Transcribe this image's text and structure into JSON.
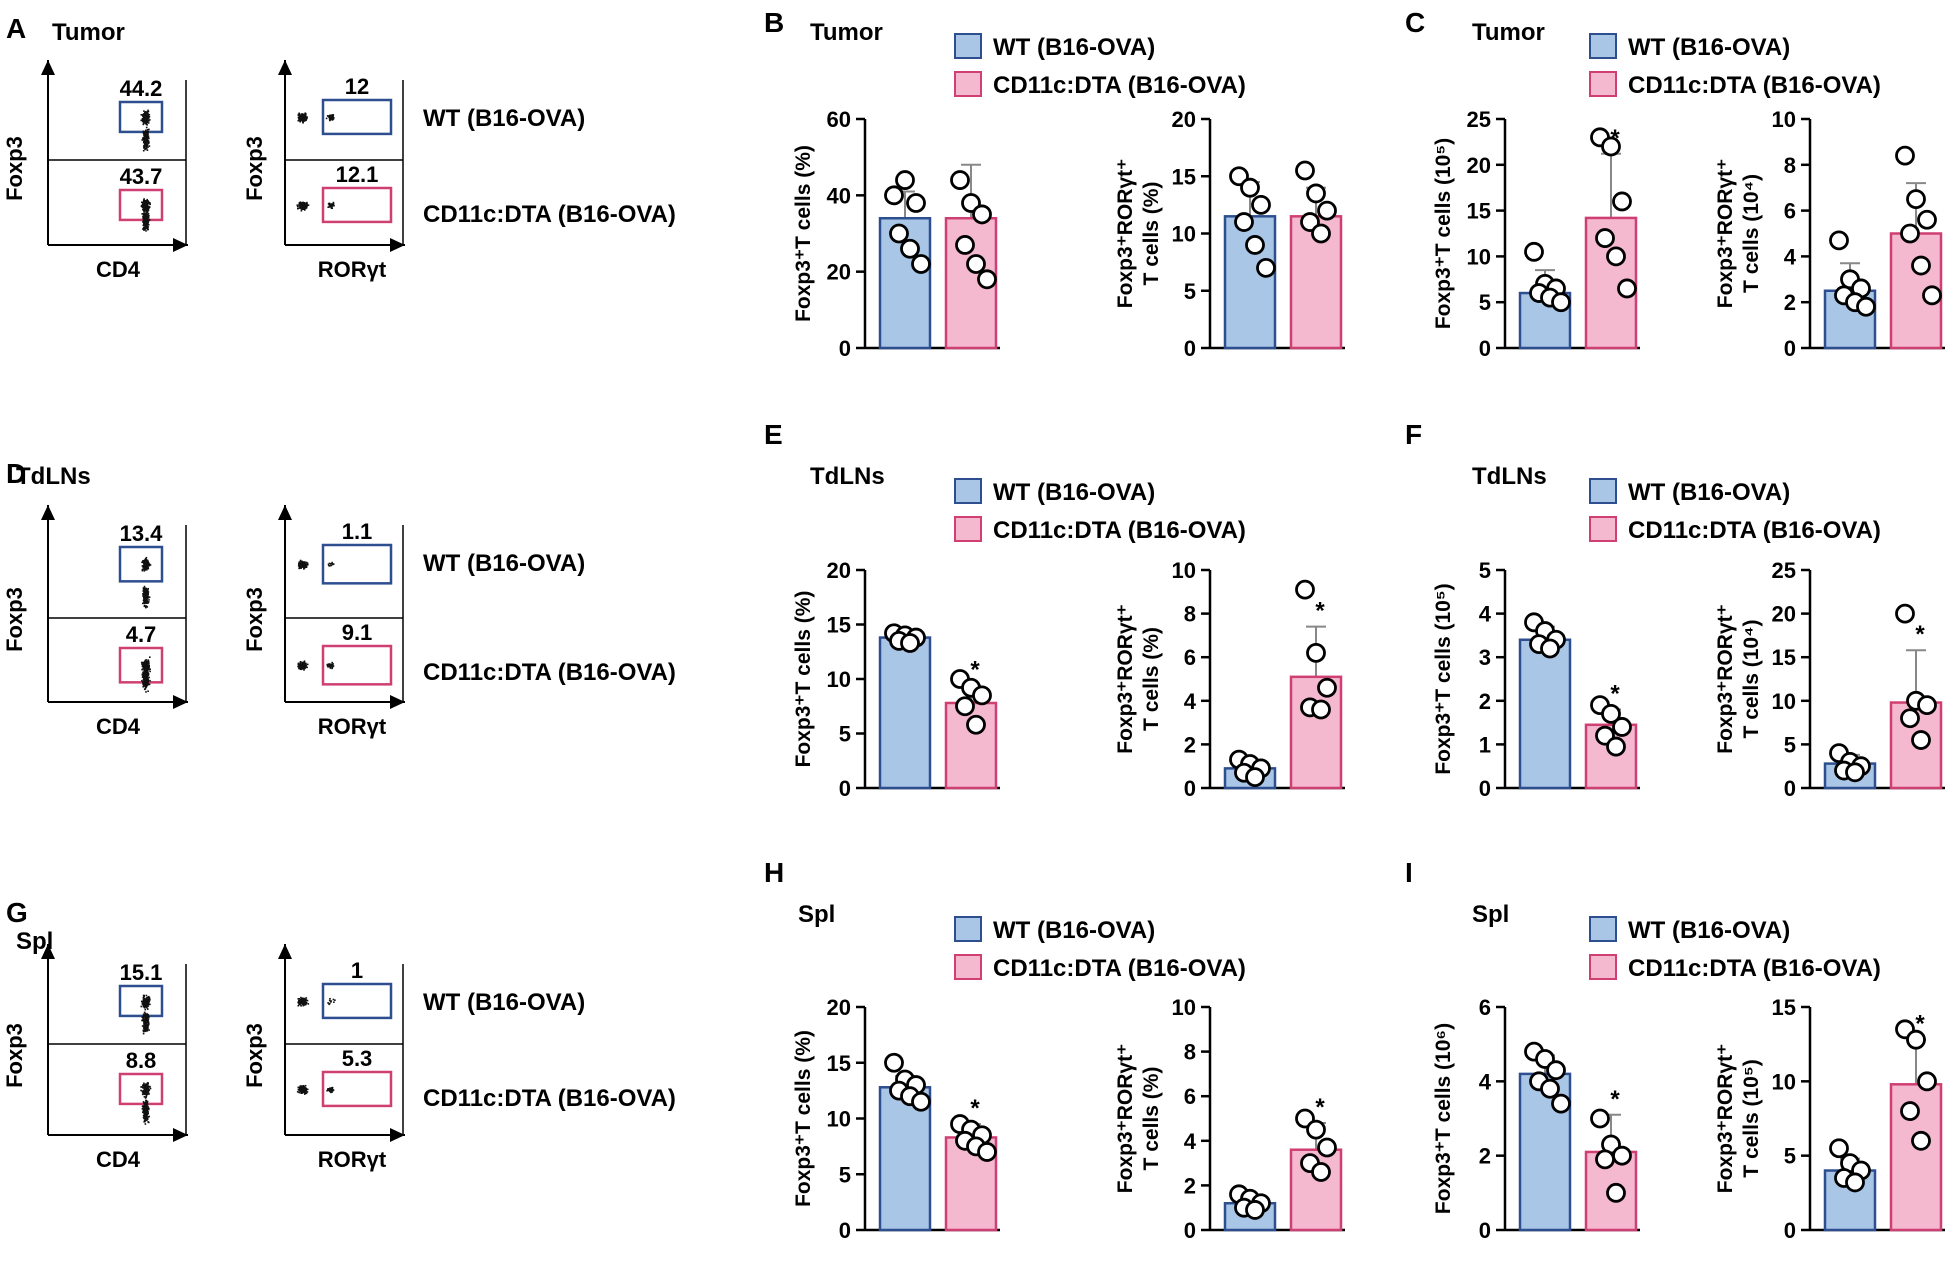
{
  "colors": {
    "wt_fill": "#a9c6e6",
    "wt_edge": "#2d4f8f",
    "dta_fill": "#f4b8cf",
    "dta_edge": "#cf3f72"
  },
  "legend": {
    "wt": "WT (B16-OVA)",
    "dta": "CD11c:DTA (B16-OVA)"
  },
  "flow_labels": {
    "foxp3": "Foxp3",
    "cd4": "CD4",
    "rorgt": "RORγt"
  },
  "sections": [
    {
      "tissue": "Tumor",
      "panels": [
        "A",
        "B",
        "C"
      ],
      "cd4_gates": [
        "44.2",
        "43.7"
      ],
      "ror_gates": [
        "12",
        "12.1"
      ]
    },
    {
      "tissue": "TdLNs",
      "panels": [
        "D",
        "E",
        "F"
      ],
      "cd4_gates": [
        "13.4",
        "4.7"
      ],
      "ror_gates": [
        "1.1",
        "9.1"
      ]
    },
    {
      "tissue": "Spl",
      "panels": [
        "G",
        "H",
        "I"
      ],
      "cd4_gates": [
        "15.1",
        "8.8"
      ],
      "ror_gates": [
        "1",
        "5.3"
      ]
    }
  ],
  "chart_data": [
    {
      "type": "bar",
      "panel": "B",
      "tissue": "Tumor",
      "ylabel": "Foxp3⁺T cells (%)",
      "ylabel_lines": [
        "Foxp3⁺T cells (%)"
      ],
      "ylim": [
        0,
        60
      ],
      "yticks": [
        "0",
        "20",
        "40",
        "60"
      ],
      "categories": [
        "WT (B16-OVA)",
        "CD11c:DTA (B16-OVA)"
      ],
      "means": [
        34,
        34
      ],
      "sd": [
        7,
        14
      ],
      "points": [
        [
          40,
          44,
          38,
          30,
          26,
          22
        ],
        [
          44,
          38,
          35,
          27,
          22,
          18
        ]
      ],
      "sig": [
        false,
        false
      ]
    },
    {
      "type": "bar",
      "panel": "B",
      "tissue": "Tumor",
      "ylabel": "Foxp3⁺RORγt⁺ T cells (%)",
      "ylabel_lines": [
        "Foxp3⁺RORγt⁺",
        "T cells (%)"
      ],
      "ylim": [
        0,
        20
      ],
      "yticks": [
        "0",
        "5",
        "10",
        "15",
        "20"
      ],
      "categories": [
        "WT (B16-OVA)",
        "CD11c:DTA (B16-OVA)"
      ],
      "means": [
        11.5,
        11.5
      ],
      "sd": [
        3,
        2.5
      ],
      "points": [
        [
          15,
          14,
          12.5,
          11,
          9,
          7
        ],
        [
          15.5,
          13.5,
          12,
          11,
          10
        ]
      ],
      "sig": [
        false,
        false
      ]
    },
    {
      "type": "bar",
      "panel": "C",
      "tissue": "Tumor",
      "ylabel": "Foxp3⁺T cells (10⁵)",
      "ylabel_lines": [
        "Foxp3⁺T cells (10⁵)"
      ],
      "ylim": [
        0,
        25
      ],
      "yticks": [
        "0",
        "5",
        "10",
        "15",
        "20",
        "25"
      ],
      "categories": [
        "WT (B16-OVA)",
        "CD11c:DTA (B16-OVA)"
      ],
      "means": [
        6,
        14.2
      ],
      "sd": [
        2.5,
        7
      ],
      "points": [
        [
          10.5,
          7,
          6.5,
          6,
          5.5,
          5
        ],
        [
          23,
          22,
          16,
          12,
          10,
          6.5
        ]
      ],
      "sig": [
        false,
        true
      ]
    },
    {
      "type": "bar",
      "panel": "C",
      "tissue": "Tumor",
      "ylabel": "Foxp3⁺RORγt⁺ T cells (10⁴)",
      "ylabel_lines": [
        "Foxp3⁺RORγt⁺",
        "T cells (10⁴)"
      ],
      "ylim": [
        0,
        10
      ],
      "yticks": [
        "0",
        "2",
        "4",
        "6",
        "8",
        "10"
      ],
      "categories": [
        "WT (B16-OVA)",
        "CD11c:DTA (B16-OVA)"
      ],
      "means": [
        2.5,
        5
      ],
      "sd": [
        1.2,
        2.2
      ],
      "points": [
        [
          4.7,
          3,
          2.6,
          2.3,
          2,
          1.8
        ],
        [
          8.4,
          6.5,
          5.6,
          5,
          3.6,
          2.3
        ]
      ],
      "sig": [
        false,
        false
      ]
    },
    {
      "type": "bar",
      "panel": "E",
      "tissue": "TdLNs",
      "ylabel": "Foxp3⁺T cells (%)",
      "ylabel_lines": [
        "Foxp3⁺T cells (%)"
      ],
      "ylim": [
        0,
        20
      ],
      "yticks": [
        "0",
        "5",
        "10",
        "15",
        "20"
      ],
      "categories": [
        "WT (B16-OVA)",
        "CD11c:DTA (B16-OVA)"
      ],
      "means": [
        13.8,
        7.8
      ],
      "sd": [
        0.5,
        1.6
      ],
      "points": [
        [
          14.2,
          14,
          13.8,
          13.5,
          13.3
        ],
        [
          10,
          9.2,
          8.5,
          7.5,
          5.8
        ]
      ],
      "sig": [
        false,
        true
      ]
    },
    {
      "type": "bar",
      "panel": "E",
      "tissue": "TdLNs",
      "ylabel": "Foxp3⁺RORγt⁺ T cells (%)",
      "ylabel_lines": [
        "Foxp3⁺RORγt⁺",
        "T cells (%)"
      ],
      "ylim": [
        0,
        10
      ],
      "yticks": [
        "0",
        "2",
        "4",
        "6",
        "8",
        "10"
      ],
      "categories": [
        "WT (B16-OVA)",
        "CD11c:DTA (B16-OVA)"
      ],
      "means": [
        0.9,
        5.1
      ],
      "sd": [
        0.3,
        2.3
      ],
      "points": [
        [
          1.3,
          1.1,
          0.9,
          0.7,
          0.5
        ],
        [
          9.1,
          6.2,
          4.6,
          3.7,
          3.6
        ]
      ],
      "sig": [
        false,
        true
      ]
    },
    {
      "type": "bar",
      "panel": "F",
      "tissue": "TdLNs",
      "ylabel": "Foxp3⁺T cells (10⁵)",
      "ylabel_lines": [
        "Foxp3⁺T cells (10⁵)"
      ],
      "ylim": [
        0,
        5
      ],
      "yticks": [
        "0",
        "1",
        "2",
        "3",
        "4",
        "5"
      ],
      "categories": [
        "WT (B16-OVA)",
        "CD11c:DTA (B16-OVA)"
      ],
      "means": [
        3.4,
        1.45
      ],
      "sd": [
        0.3,
        0.35
      ],
      "points": [
        [
          3.8,
          3.6,
          3.4,
          3.3,
          3.2
        ],
        [
          1.9,
          1.7,
          1.4,
          1.2,
          0.95
        ]
      ],
      "sig": [
        false,
        true
      ]
    },
    {
      "type": "bar",
      "panel": "F",
      "tissue": "TdLNs",
      "ylabel": "Foxp3⁺RORγt⁺ T cells (10⁴)",
      "ylabel_lines": [
        "Foxp3⁺RORγt⁺",
        "T cells (10⁴)"
      ],
      "ylim": [
        0,
        25
      ],
      "yticks": [
        "0",
        "5",
        "10",
        "15",
        "20",
        "25"
      ],
      "categories": [
        "WT (B16-OVA)",
        "CD11c:DTA (B16-OVA)"
      ],
      "means": [
        2.8,
        9.8
      ],
      "sd": [
        1,
        6
      ],
      "points": [
        [
          4,
          3,
          2.5,
          2,
          1.8
        ],
        [
          20,
          10,
          9.5,
          8,
          5.5
        ]
      ],
      "sig": [
        false,
        true
      ]
    },
    {
      "type": "bar",
      "panel": "H",
      "tissue": "Spl",
      "ylabel": "Foxp3⁺T cells (%)",
      "ylabel_lines": [
        "Foxp3⁺T cells (%)"
      ],
      "ylim": [
        0,
        20
      ],
      "yticks": [
        "0",
        "5",
        "10",
        "15",
        "20"
      ],
      "categories": [
        "WT (B16-OVA)",
        "CD11c:DTA (B16-OVA)"
      ],
      "means": [
        12.8,
        8.3
      ],
      "sd": [
        1,
        1.2
      ],
      "points": [
        [
          15,
          13.5,
          13,
          12.5,
          12,
          11.5
        ],
        [
          9.5,
          9,
          8.5,
          8,
          7.5,
          7
        ]
      ],
      "sig": [
        false,
        true
      ]
    },
    {
      "type": "bar",
      "panel": "H",
      "tissue": "Spl",
      "ylabel": "Foxp3⁺RORγt⁺ T cells (%)",
      "ylabel_lines": [
        "Foxp3⁺RORγt⁺",
        "T cells (%)"
      ],
      "ylim": [
        0,
        10
      ],
      "yticks": [
        "0",
        "2",
        "4",
        "6",
        "8",
        "10"
      ],
      "categories": [
        "WT (B16-OVA)",
        "CD11c:DTA (B16-OVA)"
      ],
      "means": [
        1.2,
        3.6
      ],
      "sd": [
        0.3,
        1.2
      ],
      "points": [
        [
          1.6,
          1.4,
          1.2,
          1,
          0.9
        ],
        [
          5,
          4.5,
          3.7,
          3,
          2.6
        ]
      ],
      "sig": [
        false,
        true
      ]
    },
    {
      "type": "bar",
      "panel": "I",
      "tissue": "Spl",
      "ylabel": "Foxp3⁺T cells (10⁶)",
      "ylabel_lines": [
        "Foxp3⁺T cells (10⁶)"
      ],
      "ylim": [
        0,
        6
      ],
      "yticks": [
        "0",
        "2",
        "4",
        "6"
      ],
      "categories": [
        "WT (B16-OVA)",
        "CD11c:DTA (B16-OVA)"
      ],
      "means": [
        4.2,
        2.1
      ],
      "sd": [
        0.5,
        1
      ],
      "points": [
        [
          4.8,
          4.6,
          4.3,
          4,
          3.8,
          3.4
        ],
        [
          3,
          2.3,
          2,
          1.9,
          1
        ]
      ],
      "sig": [
        false,
        true
      ]
    },
    {
      "type": "bar",
      "panel": "I",
      "tissue": "Spl",
      "ylabel": "Foxp3⁺RORγt⁺ T cells (10⁵)",
      "ylabel_lines": [
        "Foxp3⁺RORγt⁺",
        "T cells (10⁵)"
      ],
      "ylim": [
        0,
        15
      ],
      "yticks": [
        "0",
        "5",
        "10",
        "15"
      ],
      "categories": [
        "WT (B16-OVA)",
        "CD11c:DTA (B16-OVA)"
      ],
      "means": [
        4,
        9.8
      ],
      "sd": [
        0.8,
        3
      ],
      "points": [
        [
          5.5,
          4.5,
          4,
          3.5,
          3.2
        ],
        [
          13.5,
          12.8,
          10,
          8,
          6
        ]
      ],
      "sig": [
        false,
        true
      ]
    }
  ]
}
